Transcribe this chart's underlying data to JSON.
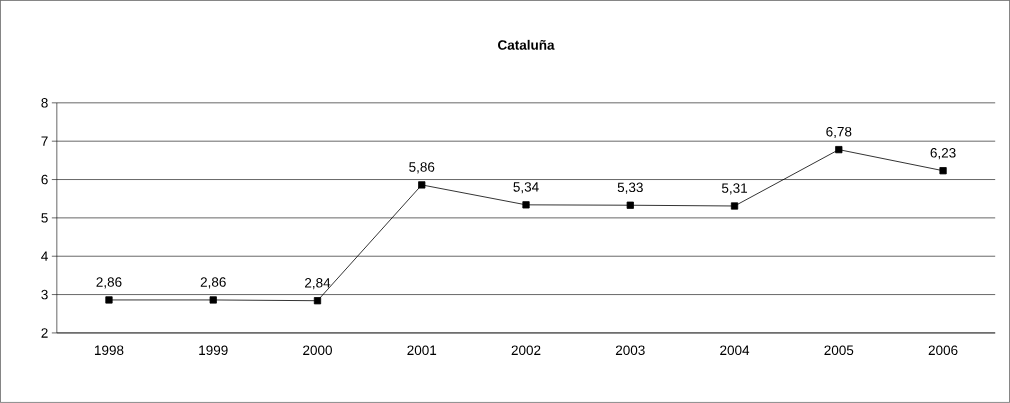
{
  "chart_data": {
    "type": "line",
    "title": "Cataluña",
    "categories": [
      "1998",
      "1999",
      "2000",
      "2001",
      "2002",
      "2003",
      "2004",
      "2005",
      "2006"
    ],
    "series": [
      {
        "color": "#000000",
        "values": [
          2.86,
          2.86,
          2.84,
          5.86,
          5.34,
          5.33,
          5.31,
          6.78,
          6.23
        ],
        "value_labels": [
          "2,86",
          "2,86",
          "2,84",
          "5,86",
          "5,34",
          "5,33",
          "5,31",
          "6,78",
          "6,23"
        ]
      }
    ],
    "ylim": [
      2,
      8
    ],
    "yticks": [
      2,
      3,
      4,
      5,
      6,
      7,
      8
    ],
    "grid": "y",
    "marker": "square",
    "line_style": "solid"
  }
}
